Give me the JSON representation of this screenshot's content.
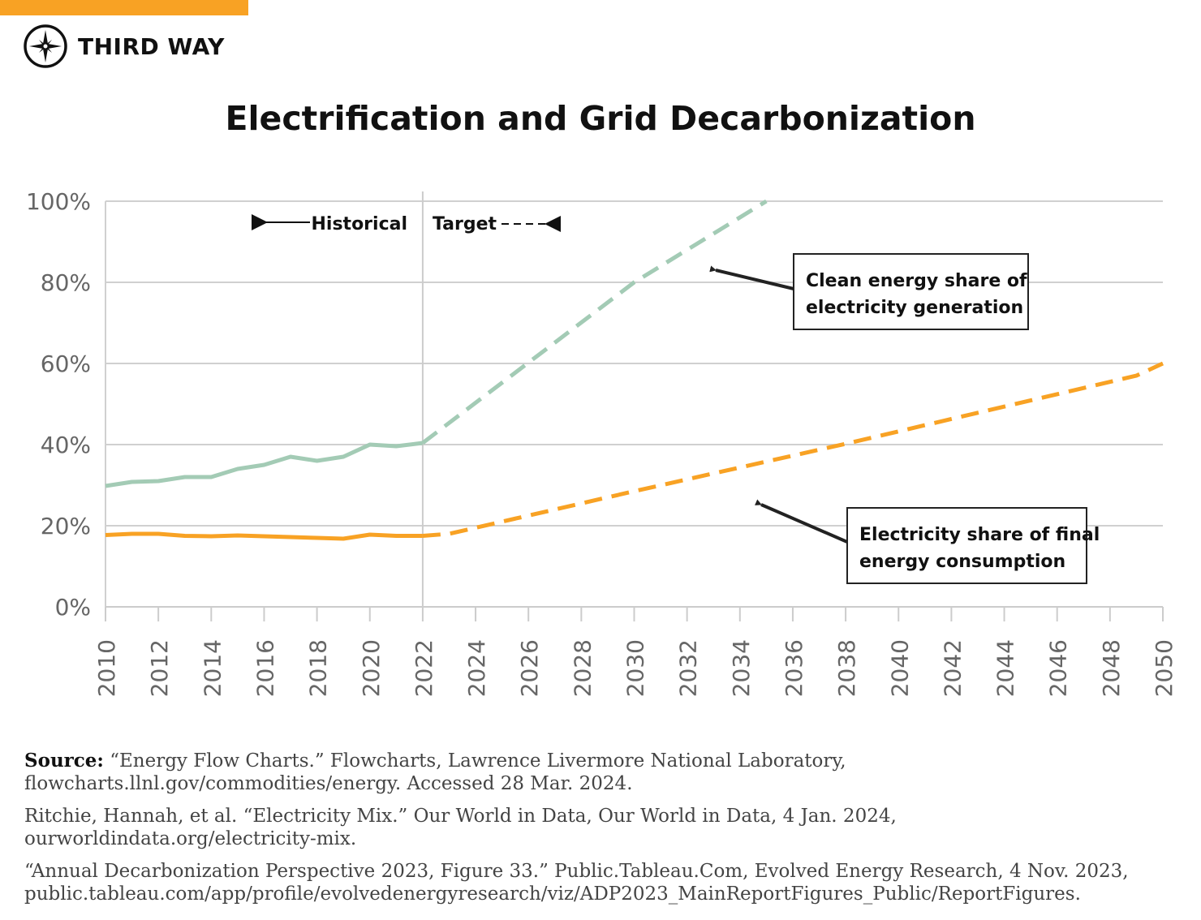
{
  "brand": {
    "name": "THIRD WAY",
    "accent": "#f8a224"
  },
  "chart_data": {
    "type": "line",
    "title": "Electrification and Grid Decarbonization",
    "xlabel": "",
    "ylabel": "",
    "xlim": [
      2010,
      2050
    ],
    "ylim": [
      0,
      100
    ],
    "xticks": [
      "2010",
      "2012",
      "2014",
      "2016",
      "2018",
      "2020",
      "2022",
      "2024",
      "2026",
      "2028",
      "2030",
      "2032",
      "2034",
      "2036",
      "2038",
      "2040",
      "2042",
      "2044",
      "2046",
      "2048",
      "2050"
    ],
    "yticks": [
      "0%",
      "20%",
      "40%",
      "60%",
      "80%",
      "100%"
    ],
    "grid": true,
    "divider_year": 2022,
    "period_labels": {
      "historical": "Historical",
      "target": "Target"
    },
    "series": [
      {
        "name": "Clean energy share of electricity generation",
        "color": "#a3cbb5",
        "historical": {
          "x": [
            2010,
            2011,
            2012,
            2013,
            2014,
            2015,
            2016,
            2017,
            2018,
            2019,
            2020,
            2021,
            2022
          ],
          "y": [
            29.8,
            30.8,
            31,
            32,
            32,
            34,
            35,
            37,
            36,
            37,
            40,
            39.6,
            40.4
          ]
        },
        "target": {
          "x": [
            2022,
            2030,
            2035
          ],
          "y": [
            40.4,
            80,
            100
          ]
        }
      },
      {
        "name": "Electricity share of final energy consumption",
        "color": "#f8a224",
        "historical": {
          "x": [
            2010,
            2011,
            2012,
            2013,
            2014,
            2015,
            2016,
            2017,
            2018,
            2019,
            2020,
            2021,
            2022
          ],
          "y": [
            17.7,
            18,
            18,
            17.5,
            17.4,
            17.6,
            17.4,
            17.2,
            17,
            16.8,
            17.8,
            17.5,
            17.5
          ]
        },
        "target": {
          "x": [
            2022,
            2023,
            2024,
            2030,
            2038,
            2049,
            2050
          ],
          "y": [
            17.5,
            18,
            19.5,
            28.5,
            40.2,
            57,
            60
          ]
        }
      }
    ],
    "annotations": [
      {
        "lines": [
          "Clean energy share of",
          "electricity generation"
        ]
      },
      {
        "lines": [
          "Electricity share of final",
          "energy consumption"
        ]
      }
    ]
  },
  "sources": {
    "label": "Source:",
    "items": [
      "“Energy Flow Charts.” Flowcharts, Lawrence Livermore National Laboratory, flowcharts.llnl.gov/commodities/energy. Accessed 28 Mar. 2024.",
      "Ritchie, Hannah, et al. “Electricity Mix.” Our World in Data, Our World in Data, 4 Jan. 2024, ourworldindata.org/electricity-mix.",
      "“Annual Decarbonization Perspective 2023, Figure 33.” Public.Tableau.Com, Evolved Energy Research, 4 Nov. 2023, public.tableau.com/app/profile/evolvedenergyresearch/viz/ADP2023_MainReportFigures_Public/ReportFigures."
    ]
  }
}
